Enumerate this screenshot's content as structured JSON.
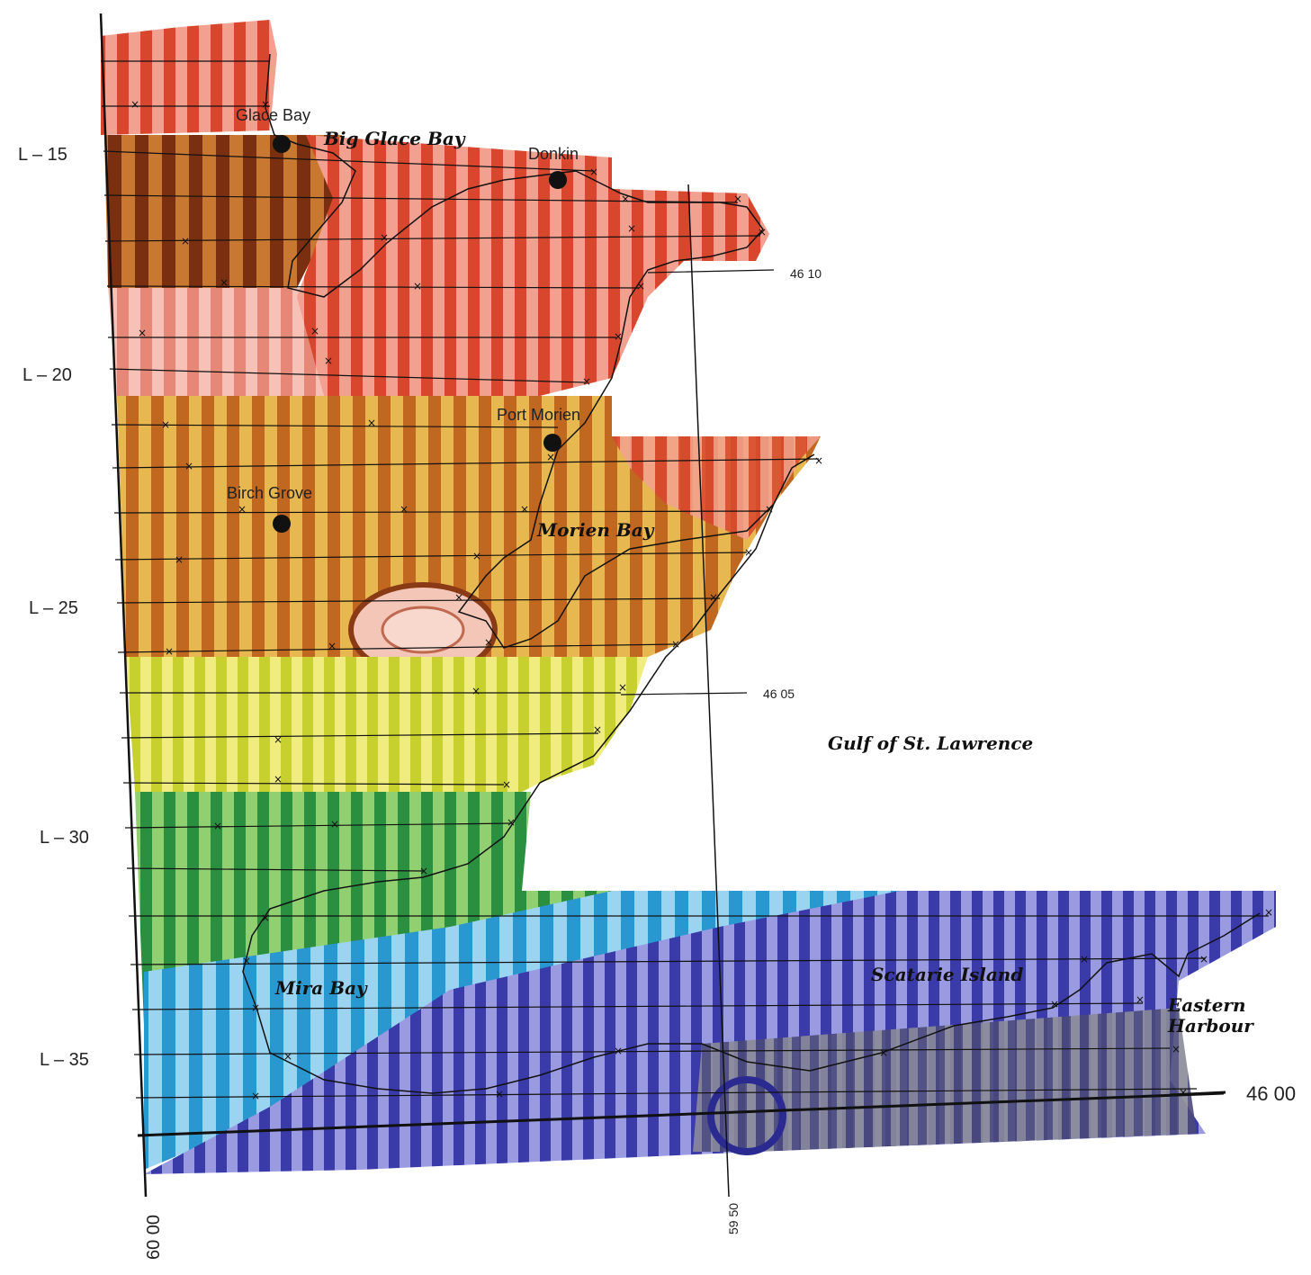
{
  "map": {
    "line_labels": [
      "L – 15",
      "L – 20",
      "L – 25",
      "L – 30",
      "L – 35"
    ],
    "latitude_labels": [
      "46 10",
      "46 05",
      "46 00"
    ],
    "longitude_labels": [
      "60 00",
      "59 50"
    ],
    "place_labels": {
      "glace_bay": "Glace Bay",
      "donkin": "Donkin",
      "port_morien": "Port Morien",
      "birch_grove": "Birch Grove"
    },
    "water_labels": {
      "big_glace_bay": "Big Glace Bay",
      "morien_bay": "Morien Bay",
      "gulf": "Gulf of St. Lawrence",
      "mira_bay": "Mira Bay",
      "scatarie_island": "Scatarie Island",
      "eastern_harbour_1": "Eastern",
      "eastern_harbour_2": "Harbour"
    },
    "colors": {
      "red_zone": "#e0503c",
      "brown_zone": "#8a3a14",
      "orange_zone": "#d98a2a",
      "yellow_zone": "#e8e040",
      "green_zone": "#3aa040",
      "cyan_zone": "#48b8e0",
      "purple_zone": "#5a5ab8",
      "gray_zone": "#6a6a6a"
    }
  }
}
